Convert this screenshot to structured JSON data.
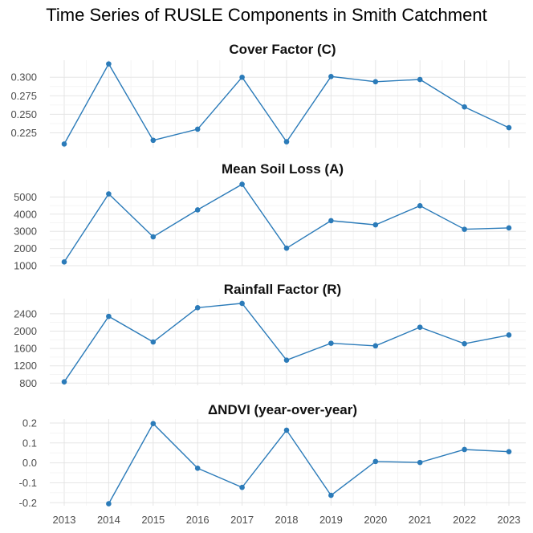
{
  "title": "Time Series of RUSLE Components in Smith Catchment",
  "colors": {
    "series": "#2b7bb9"
  },
  "x_ticks": [
    "2013",
    "2014",
    "2015",
    "2016",
    "2017",
    "2018",
    "2019",
    "2020",
    "2021",
    "2022",
    "2023"
  ],
  "chart_data": [
    {
      "type": "line",
      "title": "Cover Factor (C)",
      "x": [
        2013,
        2014,
        2015,
        2016,
        2017,
        2018,
        2019,
        2020,
        2021,
        2022,
        2023
      ],
      "values": [
        0.21,
        0.318,
        0.215,
        0.23,
        0.3,
        0.213,
        0.301,
        0.294,
        0.297,
        0.26,
        0.232
      ],
      "yticks": [
        "0.225",
        "0.250",
        "0.275",
        "0.300"
      ],
      "ytick_values": [
        0.225,
        0.25,
        0.275,
        0.3
      ],
      "ylim": [
        0.205,
        0.323
      ],
      "grid": true
    },
    {
      "type": "line",
      "title": "Mean Soil Loss (A)",
      "x": [
        2013,
        2014,
        2015,
        2016,
        2017,
        2018,
        2019,
        2020,
        2021,
        2022,
        2023
      ],
      "values": [
        1220,
        5180,
        2680,
        4250,
        5740,
        2020,
        3620,
        3380,
        4490,
        3120,
        3200
      ],
      "yticks": [
        "1000",
        "2000",
        "3000",
        "4000",
        "5000"
      ],
      "ytick_values": [
        1000,
        2000,
        3000,
        4000,
        5000
      ],
      "ylim": [
        1000,
        6000
      ],
      "grid": true
    },
    {
      "type": "line",
      "title": "Rainfall Factor (R)",
      "x": [
        2013,
        2014,
        2015,
        2016,
        2017,
        2018,
        2019,
        2020,
        2021,
        2022,
        2023
      ],
      "values": [
        830,
        2340,
        1750,
        2540,
        2640,
        1330,
        1720,
        1660,
        2090,
        1710,
        1910
      ],
      "yticks": [
        "800",
        "1200",
        "1600",
        "2000",
        "2400"
      ],
      "ytick_values": [
        800,
        1200,
        1600,
        2000,
        2400
      ],
      "ylim": [
        750,
        2750
      ],
      "grid": true
    },
    {
      "type": "line",
      "title": "ΔNDVI (year-over-year)",
      "x": [
        2014,
        2015,
        2016,
        2017,
        2018,
        2019,
        2020,
        2021,
        2022,
        2023
      ],
      "values": [
        -0.205,
        0.197,
        -0.027,
        -0.123,
        0.164,
        -0.163,
        0.007,
        0.002,
        0.067,
        0.056
      ],
      "yticks": [
        "-0.2",
        "-0.1",
        "0.0",
        "0.1",
        "0.2"
      ],
      "ytick_values": [
        -0.2,
        -0.1,
        0.0,
        0.1,
        0.2
      ],
      "ylim": [
        -0.215,
        0.22
      ],
      "grid": true
    }
  ]
}
